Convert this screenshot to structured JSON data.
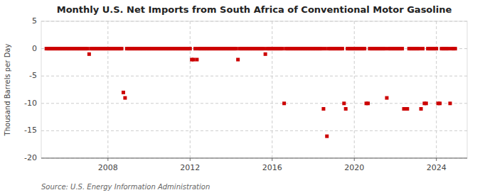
{
  "chart_data": {
    "type": "scatter",
    "title": "Monthly U.S. Net Imports from South Africa of Conventional Motor Gasoline",
    "y_label": "Thousand Barrels per Day",
    "source": "Source: U.S. Energy Information Administration",
    "color": "#cc0000",
    "marker": "square",
    "grid": true,
    "xlim": [
      2004.75,
      2025.5
    ],
    "xticks": [
      2008,
      2012,
      2016,
      2020,
      2024
    ],
    "ylim": [
      -20,
      5
    ],
    "yticks": [
      -20,
      -15,
      -10,
      -5,
      0,
      5
    ],
    "x": [
      2005,
      2005.0833333333333,
      2005.1666666666667,
      2005.25,
      2005.3333333333333,
      2005.4166666666667,
      2005.5,
      2005.5833333333333,
      2005.6666666666667,
      2005.75,
      2005.8333333333333,
      2005.9166666666667,
      2006,
      2006.0833333333333,
      2006.1666666666667,
      2006.25,
      2006.3333333333333,
      2006.4166666666667,
      2006.5,
      2006.5833333333333,
      2006.6666666666667,
      2006.75,
      2006.8333333333333,
      2006.9166666666667,
      2007,
      2007.0833333333333,
      2007.1666666666667,
      2007.25,
      2007.3333333333333,
      2007.4166666666667,
      2007.5,
      2007.5833333333333,
      2007.6666666666667,
      2007.75,
      2007.8333333333333,
      2007.9166666666667,
      2008,
      2008.0833333333333,
      2008.1666666666667,
      2008.25,
      2008.3333333333333,
      2008.4166666666667,
      2008.5,
      2008.5833333333333,
      2008.6666666666667,
      2008.75,
      2008.8333333333333,
      2008.9166666666667,
      2009,
      2009.0833333333333,
      2009.1666666666667,
      2009.25,
      2009.3333333333333,
      2009.4166666666667,
      2009.5,
      2009.5833333333333,
      2009.6666666666667,
      2009.75,
      2009.8333333333333,
      2009.9166666666667,
      2010,
      2010.0833333333333,
      2010.1666666666667,
      2010.25,
      2010.3333333333333,
      2010.4166666666667,
      2010.5,
      2010.5833333333333,
      2010.6666666666667,
      2010.75,
      2010.8333333333333,
      2010.9166666666667,
      2011,
      2011.0833333333333,
      2011.1666666666667,
      2011.25,
      2011.3333333333333,
      2011.4166666666667,
      2011.5,
      2011.5833333333333,
      2011.6666666666667,
      2011.75,
      2011.8333333333333,
      2011.9166666666667,
      2012,
      2012.0833333333333,
      2012.1666666666667,
      2012.25,
      2012.3333333333333,
      2012.4166666666667,
      2012.5,
      2012.5833333333333,
      2012.6666666666667,
      2012.75,
      2012.8333333333333,
      2012.9166666666667,
      2013,
      2013.0833333333333,
      2013.1666666666667,
      2013.25,
      2013.3333333333333,
      2013.4166666666667,
      2013.5,
      2013.5833333333333,
      2013.6666666666667,
      2013.75,
      2013.8333333333333,
      2013.9166666666667,
      2014,
      2014.0833333333333,
      2014.1666666666667,
      2014.25,
      2014.3333333333333,
      2014.4166666666667,
      2014.5,
      2014.5833333333333,
      2014.6666666666667,
      2014.75,
      2014.8333333333333,
      2014.9166666666667,
      2015,
      2015.0833333333333,
      2015.1666666666667,
      2015.25,
      2015.3333333333333,
      2015.4166666666667,
      2015.5,
      2015.5833333333333,
      2015.6666666666667,
      2015.75,
      2015.8333333333333,
      2015.9166666666667,
      2016,
      2016.0833333333333,
      2016.1666666666667,
      2016.25,
      2016.3333333333333,
      2016.4166666666667,
      2016.5,
      2016.5833333333333,
      2016.6666666666667,
      2016.75,
      2016.8333333333333,
      2016.9166666666667,
      2017,
      2017.0833333333333,
      2017.1666666666667,
      2017.25,
      2017.3333333333333,
      2017.4166666666667,
      2017.5,
      2017.5833333333333,
      2017.6666666666667,
      2017.75,
      2017.8333333333333,
      2017.9166666666667,
      2018,
      2018.0833333333333,
      2018.1666666666667,
      2018.25,
      2018.3333333333333,
      2018.4166666666667,
      2018.5,
      2018.5833333333333,
      2018.6666666666667,
      2018.75,
      2018.8333333333333,
      2018.9166666666667,
      2019,
      2019.0833333333333,
      2019.1666666666667,
      2019.25,
      2019.3333333333333,
      2019.4166666666667,
      2019.5,
      2019.5833333333333,
      2019.6666666666667,
      2019.75,
      2019.8333333333333,
      2019.9166666666667,
      2020,
      2020.0833333333333,
      2020.1666666666667,
      2020.25,
      2020.3333333333333,
      2020.4166666666667,
      2020.5,
      2020.5833333333333,
      2020.6666666666667,
      2020.75,
      2020.8333333333333,
      2020.9166666666667,
      2021,
      2021.0833333333333,
      2021.1666666666667,
      2021.25,
      2021.3333333333333,
      2021.4166666666667,
      2021.5,
      2021.5833333333333,
      2021.6666666666667,
      2021.75,
      2021.8333333333333,
      2021.9166666666667,
      2022,
      2022.0833333333333,
      2022.1666666666667,
      2022.25,
      2022.3333333333333,
      2022.4166666666667,
      2022.5,
      2022.5833333333333,
      2022.6666666666667,
      2022.75,
      2022.8333333333333,
      2022.9166666666667,
      2023,
      2023.0833333333333,
      2023.1666666666667,
      2023.25,
      2023.3333333333333,
      2023.4166666666667,
      2023.5,
      2023.5833333333333,
      2023.6666666666667,
      2023.75,
      2023.8333333333333,
      2023.9166666666667,
      2024,
      2024.0833333333333,
      2024.1666666666667,
      2024.25,
      2024.3333333333333,
      2024.4166666666667,
      2024.5,
      2024.5833333333333,
      2024.6666666666667,
      2024.75,
      2024.8333333333333,
      2024.9166666666667
    ],
    "values": [
      0,
      0,
      0,
      0,
      0,
      0,
      0,
      0,
      0,
      0,
      0,
      0,
      0,
      0,
      0,
      0,
      0,
      0,
      0,
      0,
      0,
      0,
      0,
      0,
      0,
      -1,
      0,
      0,
      0,
      0,
      0,
      0,
      0,
      0,
      0,
      0,
      0,
      0,
      0,
      0,
      0,
      0,
      0,
      0,
      0,
      -8,
      -9,
      0,
      0,
      0,
      0,
      0,
      0,
      0,
      0,
      0,
      0,
      0,
      0,
      0,
      0,
      0,
      0,
      0,
      0,
      0,
      0,
      0,
      0,
      0,
      0,
      0,
      0,
      0,
      0,
      0,
      0,
      0,
      0,
      0,
      0,
      0,
      0,
      0,
      0,
      -2,
      -2,
      0,
      -2,
      0,
      0,
      0,
      0,
      0,
      0,
      0,
      0,
      0,
      0,
      0,
      0,
      0,
      0,
      0,
      0,
      0,
      0,
      0,
      0,
      0,
      0,
      0,
      -2,
      0,
      0,
      0,
      0,
      0,
      0,
      0,
      0,
      0,
      0,
      0,
      0,
      0,
      0,
      0,
      -1,
      0,
      0,
      0,
      0,
      0,
      0,
      0,
      0,
      0,
      0,
      -10,
      0,
      0,
      0,
      0,
      0,
      0,
      0,
      0,
      0,
      0,
      0,
      0,
      0,
      0,
      0,
      0,
      0,
      0,
      0,
      0,
      0,
      0,
      -11,
      0,
      -16,
      0,
      0,
      0,
      0,
      0,
      0,
      0,
      0,
      0,
      -10,
      -11,
      0,
      0,
      0,
      0,
      0,
      0,
      0,
      0,
      0,
      0,
      0,
      -10,
      -10,
      0,
      0,
      0,
      0,
      0,
      0,
      0,
      0,
      0,
      0,
      -9,
      0,
      0,
      0,
      0,
      0,
      0,
      0,
      0,
      0,
      -11,
      -11,
      -11,
      0,
      0,
      0,
      0,
      0,
      0,
      0,
      -11,
      0,
      -10,
      -10,
      0,
      0,
      0,
      0,
      0,
      0,
      -10,
      -10,
      0,
      0,
      0,
      0,
      0,
      -10,
      0,
      0,
      0
    ]
  }
}
